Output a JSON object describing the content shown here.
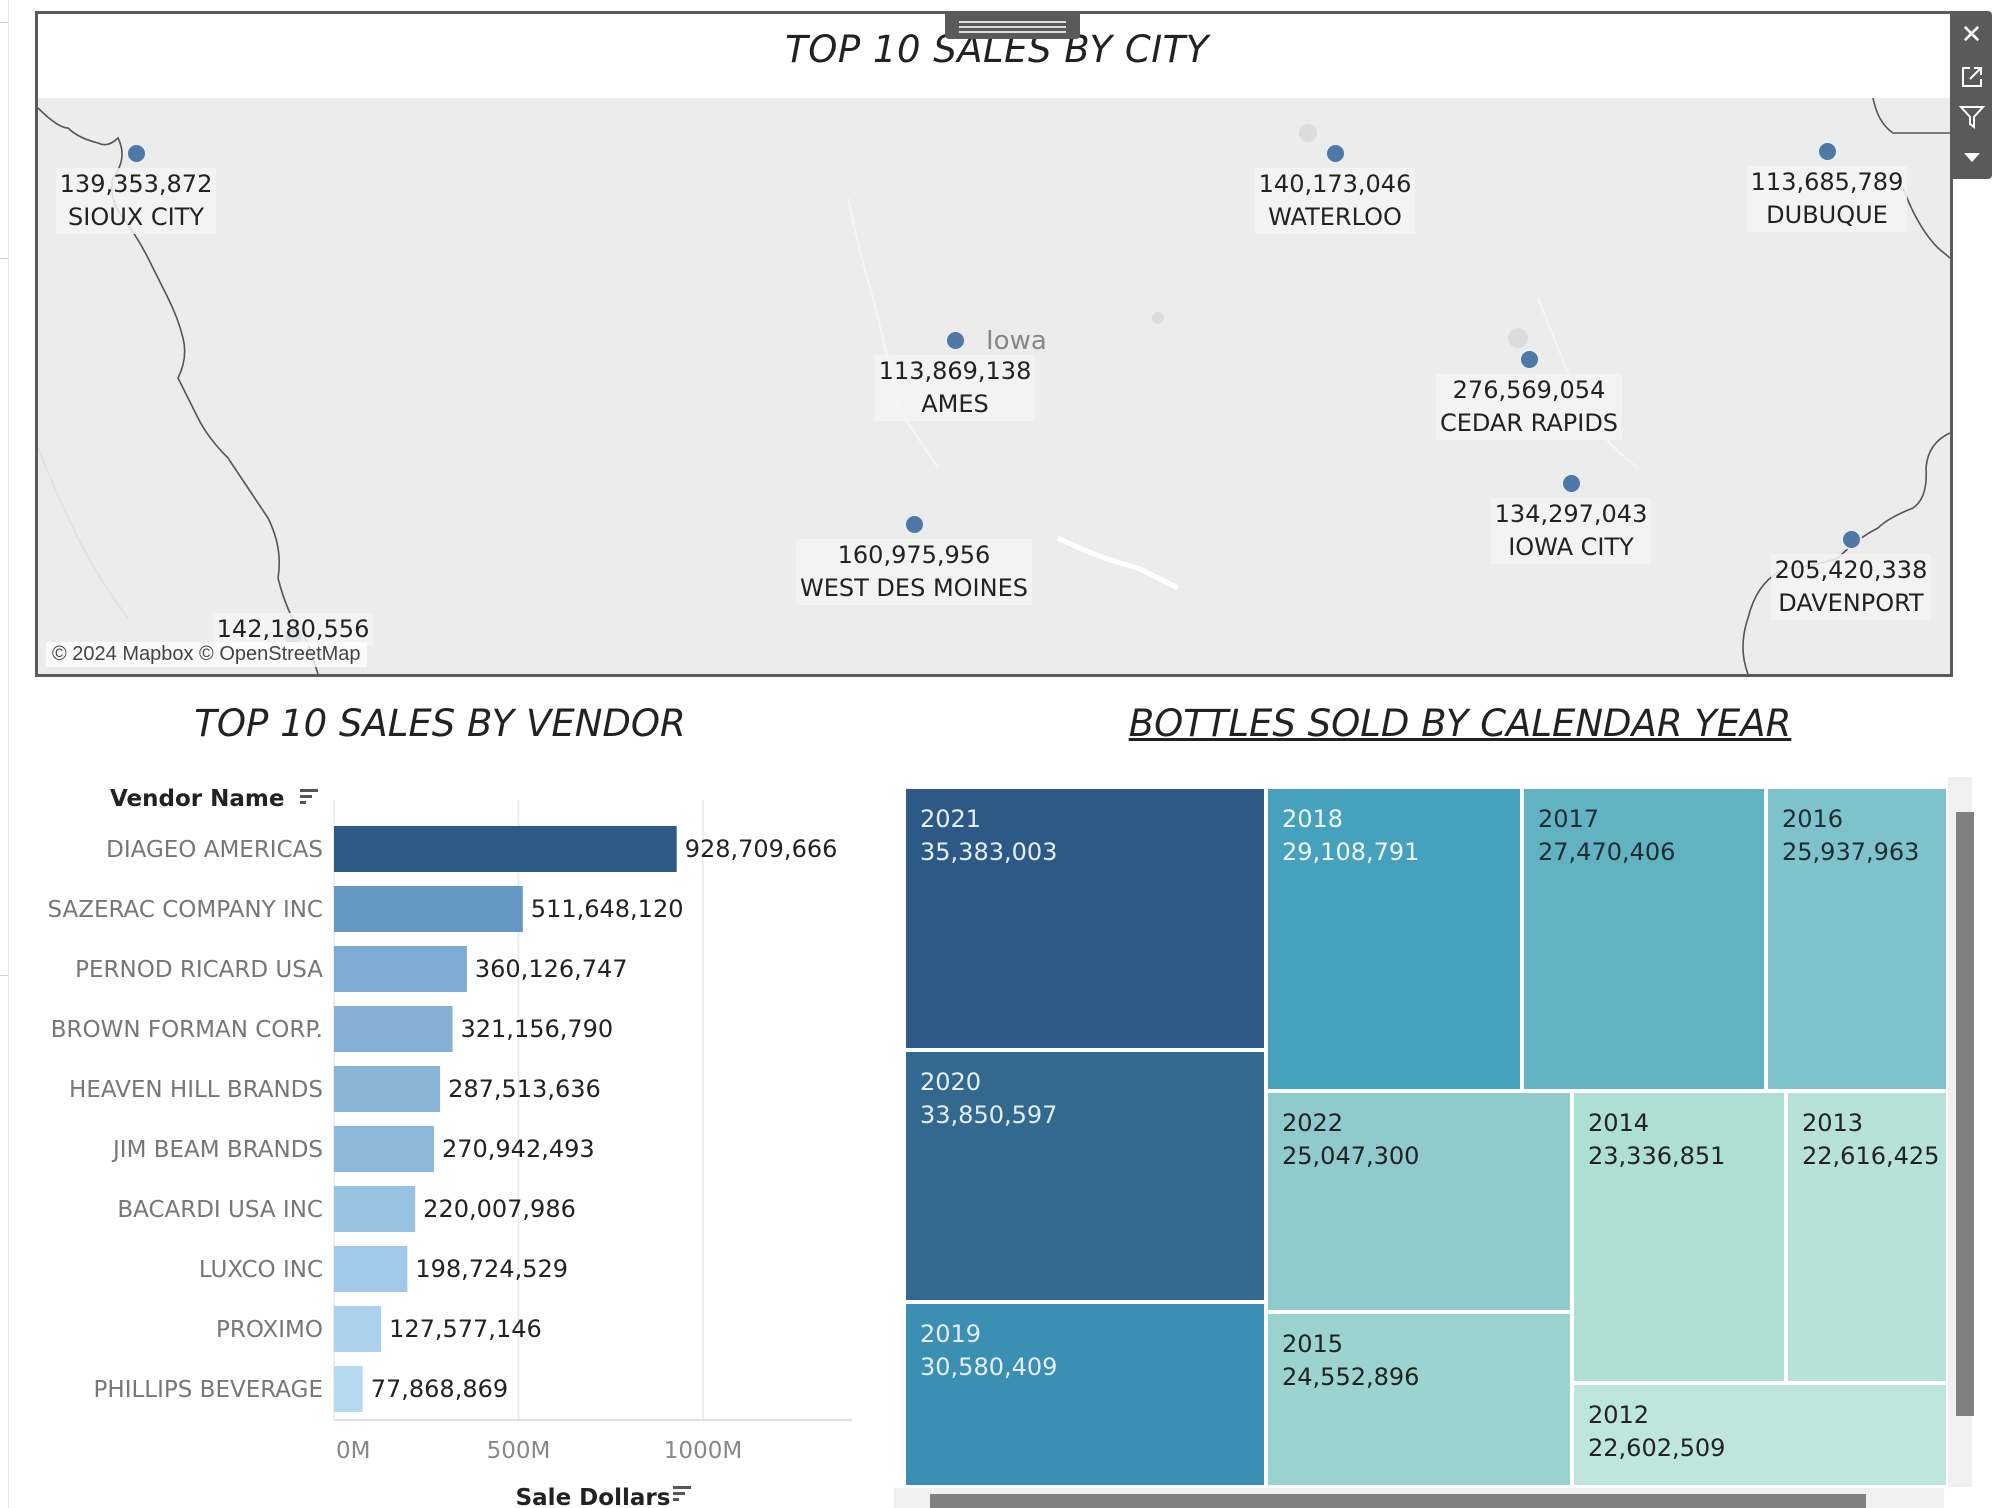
{
  "map": {
    "title": "TOP  10 SALES BY CITY",
    "attribution": "© 2024 Mapbox © OpenStreetMap",
    "region_label": "Iowa",
    "cities": [
      {
        "name": "SIOUX CITY",
        "value": "139,353,872"
      },
      {
        "name": "WATERLOO",
        "value": "140,173,046"
      },
      {
        "name": "DUBUQUE",
        "value": "113,685,789"
      },
      {
        "name": "AMES",
        "value": "113,869,138"
      },
      {
        "name": "CEDAR RAPIDS",
        "value": "276,569,054"
      },
      {
        "name": "IOWA CITY",
        "value": "134,297,043"
      },
      {
        "name": "WEST DES MOINES",
        "value": "160,975,956"
      },
      {
        "name": "DAVENPORT",
        "value": "205,420,338"
      },
      {
        "name": "",
        "value": "142,180,556"
      }
    ],
    "toolbar": [
      "close-icon",
      "popout-icon",
      "filter-icon",
      "more-options-icon"
    ]
  },
  "chart_data": [
    {
      "type": "bar",
      "title": "TOP  10 SALES BY VENDOR",
      "row_header": "Vendor Name",
      "xlabel": "Sale Dollars",
      "categories": [
        "DIAGEO AMERICAS",
        "SAZERAC COMPANY  INC",
        "PERNOD RICARD USA",
        "BROWN FORMAN CORP.",
        "HEAVEN HILL BRANDS",
        "JIM BEAM BRANDS",
        "BACARDI USA INC",
        "LUXCO INC",
        "PROXIMO",
        "PHILLIPS BEVERAGE"
      ],
      "values": [
        928709666,
        511648120,
        360126747,
        321156790,
        287513636,
        270942493,
        220007986,
        198724529,
        127577146,
        77868869
      ],
      "value_labels": [
        "928,709,666",
        "511,648,120",
        "360,126,747",
        "321,156,790",
        "287,513,636",
        "270,942,493",
        "220,007,986",
        "198,724,529",
        "127,577,146",
        "77,868,869"
      ],
      "x_ticks": [
        "0M",
        "500M",
        "1000M"
      ],
      "xlim": [
        0,
        1400000000
      ],
      "bar_colors": [
        "#2c5985",
        "#6497c1",
        "#7eabd2",
        "#84b0d5",
        "#89b5d9",
        "#8cb8dc",
        "#98c2e2",
        "#a1c9e7",
        "#acd1ec",
        "#b5d9f1"
      ],
      "grid": true
    },
    {
      "type": "treemap",
      "title": "BOTTLES SOLD BY CALENDAR YEAR",
      "categories": [
        "2021",
        "2020",
        "2019",
        "2018",
        "2017",
        "2016",
        "2022",
        "2015",
        "2014",
        "2013",
        "2012"
      ],
      "values": [
        35383003,
        33850597,
        30580409,
        29108791,
        27470406,
        25937963,
        25047300,
        24552896,
        23336851,
        22616425,
        22602509
      ],
      "value_labels": [
        "35,383,003",
        "33,850,597",
        "30,580,409",
        "29,108,791",
        "27,470,406",
        "25,937,963",
        "25,047,300",
        "24,552,896",
        "23,336,851",
        "22,616,425",
        "22,602,509"
      ],
      "colors": [
        "#2c5985",
        "#33698f",
        "#3a8fb2",
        "#46a2bc",
        "#62b3c2",
        "#7ec3cb",
        "#8fcbcc",
        "#9bd3d1",
        "#addfd7",
        "#b6e2da",
        "#bfe6dc"
      ]
    }
  ]
}
